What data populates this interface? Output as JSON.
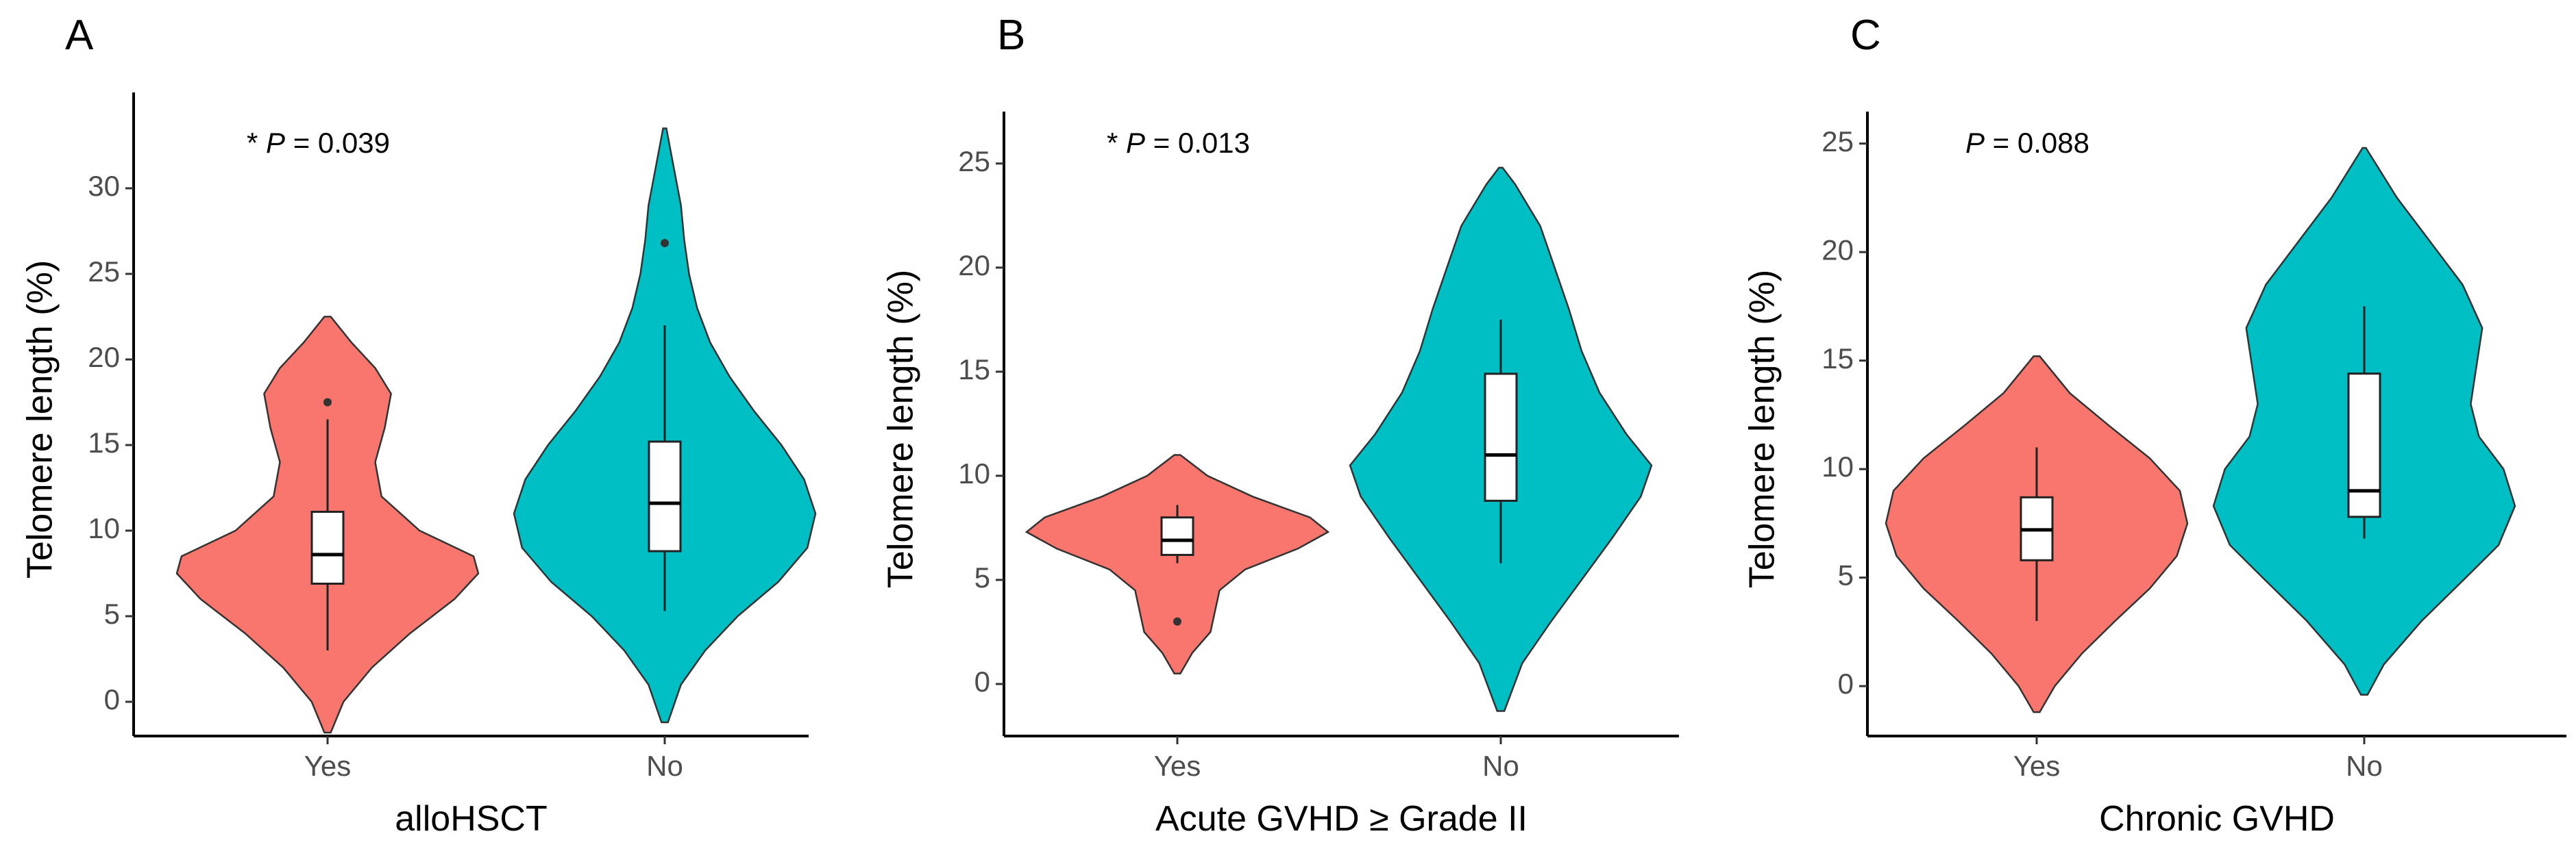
{
  "figure_title": "",
  "colors": {
    "yes": "#F8766D",
    "no": "#00BFC4"
  },
  "chart_data": [
    {
      "type": "violin",
      "panel": "A",
      "title": "",
      "annotation": {
        "prefix": "* ",
        "p": "P",
        "value": " = 0.039"
      },
      "xlabel": "alloHSCT",
      "ylabel": "Telomere length (%)",
      "ylim": [
        -2,
        35
      ],
      "yticks": [
        0,
        5,
        10,
        15,
        20,
        25,
        30
      ],
      "grid": false,
      "legend": "none",
      "categories": [
        "Yes",
        "No"
      ],
      "groups": [
        {
          "category": "Yes",
          "color": "#F8766D",
          "violin_range": [
            -1.8,
            22.5
          ],
          "density": [
            [
              -1.8,
              0.02
            ],
            [
              0,
              0.1
            ],
            [
              2,
              0.28
            ],
            [
              4,
              0.52
            ],
            [
              6,
              0.8
            ],
            [
              7.5,
              0.95
            ],
            [
              8.5,
              0.92
            ],
            [
              10,
              0.58
            ],
            [
              12,
              0.34
            ],
            [
              14,
              0.3
            ],
            [
              16,
              0.36
            ],
            [
              18,
              0.4
            ],
            [
              19.5,
              0.3
            ],
            [
              21,
              0.15
            ],
            [
              22.5,
              0.02
            ]
          ],
          "box": {
            "whisker_low": 3.0,
            "q1": 6.9,
            "median": 8.6,
            "q3": 11.1,
            "whisker_high": 16.5
          },
          "outliers": [
            17.5
          ]
        },
        {
          "category": "No",
          "color": "#00BFC4",
          "violin_range": [
            -1.2,
            33.5
          ],
          "density": [
            [
              -1.2,
              0.02
            ],
            [
              1,
              0.1
            ],
            [
              3,
              0.25
            ],
            [
              5,
              0.45
            ],
            [
              7,
              0.7
            ],
            [
              9,
              0.88
            ],
            [
              11,
              0.93
            ],
            [
              13,
              0.86
            ],
            [
              15,
              0.72
            ],
            [
              17,
              0.55
            ],
            [
              19,
              0.4
            ],
            [
              21,
              0.28
            ],
            [
              23,
              0.2
            ],
            [
              25,
              0.15
            ],
            [
              27,
              0.12
            ],
            [
              29,
              0.1
            ],
            [
              31,
              0.06
            ],
            [
              33.5,
              0.01
            ]
          ],
          "box": {
            "whisker_low": 5.3,
            "q1": 8.8,
            "median": 11.6,
            "q3": 15.2,
            "whisker_high": 22.0
          },
          "outliers": [
            26.8
          ]
        }
      ]
    },
    {
      "type": "violin",
      "panel": "B",
      "title": "",
      "annotation": {
        "prefix": "* ",
        "p": "P",
        "value": " = 0.013"
      },
      "xlabel": "Acute GVHD ≥ Grade II",
      "ylabel": "Telomere length (%)",
      "ylim": [
        -2.5,
        27
      ],
      "yticks": [
        0,
        5,
        10,
        15,
        20,
        25
      ],
      "grid": false,
      "legend": "none",
      "categories": [
        "Yes",
        "No"
      ],
      "groups": [
        {
          "category": "Yes",
          "color": "#F8766D",
          "violin_range": [
            0.5,
            11.0
          ],
          "density": [
            [
              0.5,
              0.02
            ],
            [
              1.5,
              0.1
            ],
            [
              2.5,
              0.22
            ],
            [
              3.5,
              0.25
            ],
            [
              4.5,
              0.28
            ],
            [
              5.5,
              0.45
            ],
            [
              6.5,
              0.8
            ],
            [
              7.3,
              1.0
            ],
            [
              8,
              0.88
            ],
            [
              9,
              0.5
            ],
            [
              10,
              0.2
            ],
            [
              11,
              0.02
            ]
          ],
          "box": {
            "whisker_low": 5.8,
            "q1": 6.2,
            "median": 6.9,
            "q3": 8.0,
            "whisker_high": 8.6
          },
          "outliers": [
            3.0
          ]
        },
        {
          "category": "No",
          "color": "#00BFC4",
          "violin_range": [
            -1.3,
            24.8
          ],
          "density": [
            [
              -1.3,
              0.02
            ],
            [
              1,
              0.12
            ],
            [
              3,
              0.28
            ],
            [
              5,
              0.45
            ],
            [
              7,
              0.62
            ],
            [
              9,
              0.78
            ],
            [
              10.5,
              0.84
            ],
            [
              12,
              0.7
            ],
            [
              14,
              0.55
            ],
            [
              16,
              0.45
            ],
            [
              18,
              0.38
            ],
            [
              20,
              0.3
            ],
            [
              22,
              0.22
            ],
            [
              24,
              0.08
            ],
            [
              24.8,
              0.01
            ]
          ],
          "box": {
            "whisker_low": 5.8,
            "q1": 8.8,
            "median": 11.0,
            "q3": 14.9,
            "whisker_high": 17.5
          },
          "outliers": []
        }
      ]
    },
    {
      "type": "violin",
      "panel": "C",
      "title": "",
      "annotation": {
        "prefix": "",
        "p": "P",
        "value": " = 0.088"
      },
      "xlabel": "Chronic GVHD",
      "ylabel": "Telomere length (%)",
      "ylim": [
        -2.3,
        26
      ],
      "yticks": [
        0,
        5,
        10,
        15,
        20,
        25
      ],
      "grid": false,
      "legend": "none",
      "categories": [
        "Yes",
        "No"
      ],
      "groups": [
        {
          "category": "Yes",
          "color": "#F8766D",
          "violin_range": [
            -1.2,
            15.2
          ],
          "density": [
            [
              -1.2,
              0.02
            ],
            [
              0,
              0.12
            ],
            [
              1.5,
              0.3
            ],
            [
              3,
              0.52
            ],
            [
              4.5,
              0.75
            ],
            [
              6,
              0.93
            ],
            [
              7.5,
              1.0
            ],
            [
              9,
              0.95
            ],
            [
              10.5,
              0.75
            ],
            [
              12,
              0.48
            ],
            [
              13.5,
              0.22
            ],
            [
              15.2,
              0.02
            ]
          ],
          "box": {
            "whisker_low": 3.0,
            "q1": 5.8,
            "median": 7.2,
            "q3": 8.7,
            "whisker_high": 11.0
          },
          "outliers": []
        },
        {
          "category": "No",
          "color": "#00BFC4",
          "violin_range": [
            -0.4,
            24.8
          ],
          "density": [
            [
              -0.4,
              0.02
            ],
            [
              1,
              0.12
            ],
            [
              3,
              0.35
            ],
            [
              5,
              0.62
            ],
            [
              6.5,
              0.82
            ],
            [
              8.3,
              0.92
            ],
            [
              10,
              0.85
            ],
            [
              11.5,
              0.7
            ],
            [
              13,
              0.65
            ],
            [
              14.5,
              0.68
            ],
            [
              16.5,
              0.72
            ],
            [
              18.5,
              0.6
            ],
            [
              20.5,
              0.4
            ],
            [
              22.5,
              0.2
            ],
            [
              24.8,
              0.01
            ]
          ],
          "box": {
            "whisker_low": 6.8,
            "q1": 7.8,
            "median": 9.0,
            "q3": 14.4,
            "whisker_high": 17.5
          },
          "outliers": []
        }
      ]
    }
  ]
}
